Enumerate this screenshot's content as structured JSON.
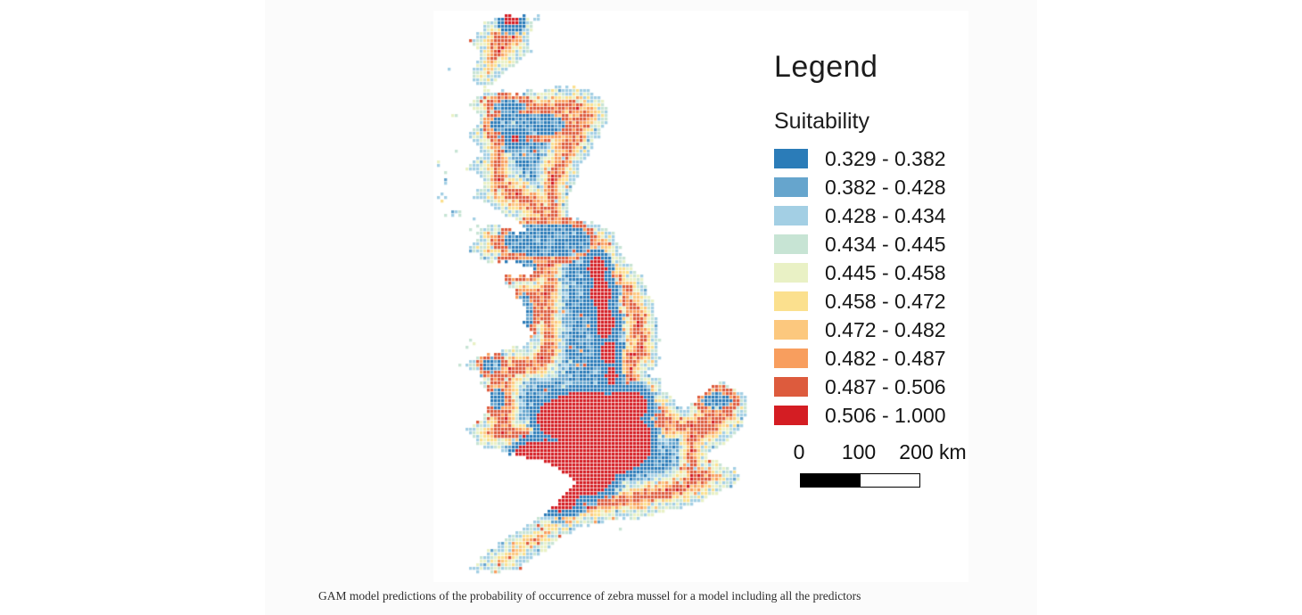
{
  "page": {
    "background": "#ffffff",
    "content_band_color": "#fbfbfb",
    "panel_color": "#ffffff"
  },
  "legend": {
    "title": "Legend",
    "subtitle": "Suitability",
    "classes": [
      {
        "label": "0.329 - 0.382",
        "color": "#2b7cb8"
      },
      {
        "label": "0.382 - 0.428",
        "color": "#66a5cd"
      },
      {
        "label": "0.428 - 0.434",
        "color": "#a3cfe4"
      },
      {
        "label": "0.434 - 0.445",
        "color": "#c7e4d4"
      },
      {
        "label": "0.445 - 0.458",
        "color": "#e9f1c5"
      },
      {
        "label": "0.458 - 0.472",
        "color": "#fbe08e"
      },
      {
        "label": "0.472 - 0.482",
        "color": "#fcc87e"
      },
      {
        "label": "0.482 - 0.487",
        "color": "#f89e5e"
      },
      {
        "label": "0.487 - 0.506",
        "color": "#dd5b3d"
      },
      {
        "label": "0.506 - 1.000",
        "color": "#d41d23"
      }
    ]
  },
  "scalebar": {
    "tick_labels": [
      "0",
      "100",
      "200 km"
    ],
    "bar_segments": [
      "#000000",
      "#ffffff"
    ]
  },
  "caption": "GAM model predictions of the probability of occurrence of zebra mussel for a model including all the predictors",
  "map_data": {
    "type": "heatmap",
    "variable": "Suitability",
    "cell_size": 4,
    "cols": 94,
    "rows": 160,
    "seed": 7,
    "coast_polygon": [
      [
        58,
        14
      ],
      [
        78,
        2
      ],
      [
        100,
        4
      ],
      [
        114,
        16
      ],
      [
        108,
        34
      ],
      [
        112,
        48
      ],
      [
        92,
        62
      ],
      [
        74,
        76
      ],
      [
        62,
        86
      ],
      [
        88,
        92
      ],
      [
        120,
        88
      ],
      [
        152,
        84
      ],
      [
        176,
        90
      ],
      [
        198,
        106
      ],
      [
        196,
        126
      ],
      [
        182,
        150
      ],
      [
        166,
        178
      ],
      [
        158,
        200
      ],
      [
        152,
        230
      ],
      [
        196,
        242
      ],
      [
        206,
        252
      ],
      [
        214,
        276
      ],
      [
        236,
        300
      ],
      [
        248,
        330
      ],
      [
        252,
        360
      ],
      [
        258,
        388
      ],
      [
        250,
        400
      ],
      [
        240,
        406
      ],
      [
        256,
        414
      ],
      [
        262,
        430
      ],
      [
        268,
        434
      ],
      [
        282,
        446
      ],
      [
        298,
        432
      ],
      [
        322,
        416
      ],
      [
        344,
        424
      ],
      [
        358,
        442
      ],
      [
        346,
        468
      ],
      [
        322,
        492
      ],
      [
        304,
        500
      ],
      [
        340,
        514
      ],
      [
        344,
        528
      ],
      [
        312,
        548
      ],
      [
        272,
        560
      ],
      [
        232,
        570
      ],
      [
        196,
        574
      ],
      [
        164,
        580
      ],
      [
        140,
        596
      ],
      [
        120,
        612
      ],
      [
        96,
        628
      ],
      [
        66,
        634
      ],
      [
        40,
        628
      ],
      [
        58,
        608
      ],
      [
        84,
        590
      ],
      [
        108,
        574
      ],
      [
        132,
        558
      ],
      [
        160,
        532
      ],
      [
        150,
        520
      ],
      [
        118,
        506
      ],
      [
        84,
        498
      ],
      [
        50,
        488
      ],
      [
        36,
        470
      ],
      [
        58,
        452
      ],
      [
        64,
        436
      ],
      [
        54,
        420
      ],
      [
        48,
        404
      ],
      [
        30,
        398
      ],
      [
        54,
        386
      ],
      [
        80,
        380
      ],
      [
        106,
        374
      ],
      [
        112,
        362
      ],
      [
        100,
        352
      ],
      [
        106,
        338
      ],
      [
        94,
        322
      ],
      [
        84,
        310
      ],
      [
        76,
        296
      ],
      [
        114,
        298
      ],
      [
        112,
        288
      ],
      [
        88,
        284
      ],
      [
        60,
        282
      ],
      [
        38,
        268
      ],
      [
        52,
        256
      ],
      [
        44,
        246
      ],
      [
        70,
        240
      ],
      [
        100,
        250
      ],
      [
        104,
        244
      ],
      [
        80,
        230
      ],
      [
        64,
        218
      ],
      [
        40,
        210
      ],
      [
        60,
        194
      ],
      [
        34,
        176
      ],
      [
        56,
        158
      ],
      [
        36,
        140
      ],
      [
        58,
        122
      ],
      [
        40,
        106
      ],
      [
        58,
        90
      ],
      [
        38,
        72
      ],
      [
        52,
        52
      ],
      [
        42,
        34
      ]
    ],
    "islands": [
      [
        14,
        190,
        8,
        0.5
      ],
      [
        8,
        210,
        6,
        0.5
      ],
      [
        22,
        160,
        7,
        0.45
      ],
      [
        10,
        140,
        6,
        0.4
      ],
      [
        26,
        120,
        6,
        0.4
      ],
      [
        12,
        96,
        5,
        0.4
      ],
      [
        30,
        226,
        7,
        0.5
      ],
      [
        46,
        240,
        8,
        0.55
      ],
      [
        54,
        258,
        7,
        0.5
      ],
      [
        20,
        70,
        5,
        0.35
      ],
      [
        40,
        84,
        5,
        0.3
      ],
      [
        118,
        10,
        7,
        0.5
      ],
      [
        132,
        20,
        6,
        0.45
      ],
      [
        104,
        22,
        5,
        0.4
      ],
      [
        44,
        376,
        7,
        0.6
      ],
      [
        208,
        582,
        6,
        0.6
      ],
      [
        6,
        174,
        4,
        0.5
      ],
      [
        18,
        228,
        5,
        0.5
      ]
    ],
    "red_zones": [
      [
        172,
        458,
        56,
        30
      ],
      [
        200,
        484,
        46,
        36
      ],
      [
        162,
        514,
        44,
        32
      ],
      [
        142,
        548,
        20,
        14
      ],
      [
        126,
        500,
        34,
        18
      ],
      [
        216,
        444,
        26,
        18
      ],
      [
        184,
        290,
        10,
        14
      ],
      [
        188,
        318,
        11,
        17
      ],
      [
        193,
        350,
        10,
        17
      ],
      [
        197,
        384,
        8,
        14
      ],
      [
        200,
        410,
        6,
        10
      ],
      [
        88,
        10,
        9,
        7
      ],
      [
        92,
        144,
        6,
        5
      ]
    ],
    "blue_zones": [
      [
        106,
        128,
        44,
        13
      ],
      [
        86,
        108,
        18,
        8
      ],
      [
        128,
        258,
        48,
        20
      ],
      [
        96,
        288,
        22,
        10
      ],
      [
        102,
        340,
        10,
        22
      ],
      [
        318,
        438,
        17,
        9
      ],
      [
        72,
        436,
        10,
        12
      ],
      [
        66,
        398,
        10,
        8
      ]
    ],
    "bands_by_coast_distance": [
      [
        2,
        3,
        2,
        3,
        4,
        2
      ],
      [
        3,
        2,
        4,
        5,
        4,
        2
      ],
      [
        5,
        4,
        6,
        5,
        6,
        7
      ],
      [
        7,
        6,
        8,
        7,
        8,
        8
      ],
      [
        8,
        8,
        7,
        8,
        9,
        8
      ],
      [
        7,
        8,
        8,
        7,
        6,
        8
      ],
      [
        5,
        6,
        7,
        4,
        6,
        5
      ],
      [
        4,
        3,
        2,
        5,
        3,
        4
      ],
      [
        2,
        3,
        1,
        2,
        1,
        2
      ],
      [
        1,
        0,
        1,
        2,
        0,
        1
      ],
      [
        0,
        1,
        0,
        0,
        1,
        0
      ]
    ]
  }
}
